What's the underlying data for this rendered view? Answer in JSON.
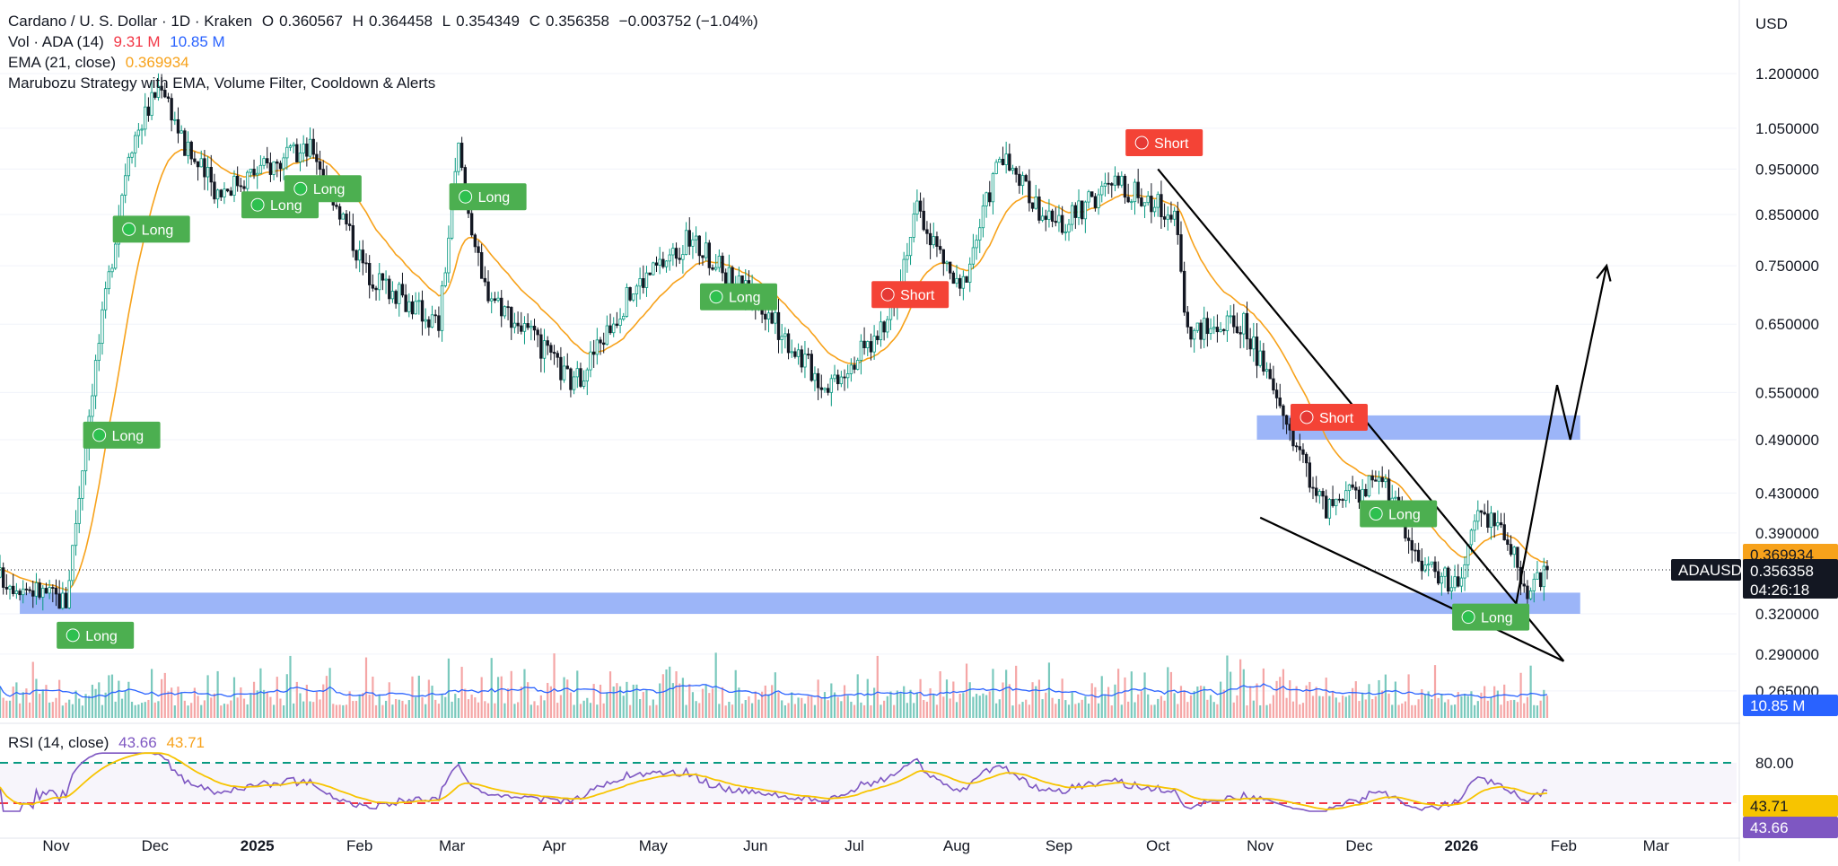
{
  "header": {
    "symbol_line": "Cardano / U. S. Dollar · 1D · Kraken",
    "o_label": "O",
    "o_value": "0.360567",
    "h_label": "H",
    "h_value": "0.364458",
    "l_label": "L",
    "l_value": "0.354349",
    "c_label": "C",
    "c_value": "0.356358",
    "change": "−0.003752 (−1.04%)",
    "vol_label": "Vol · ADA (14)",
    "vol_value_1": "9.31 M",
    "vol_value_2": "10.85 M",
    "ema_label": "EMA (21, close)",
    "ema_value": "0.369934",
    "strategy_label": "Marubozu Strategy with EMA, Volume Filter, Cooldown & Alerts",
    "rsi_label": "RSI (14, close)",
    "rsi_value_1": "43.66",
    "rsi_value_2": "43.71"
  },
  "price_scale": {
    "currency": "USD",
    "ticks": [
      "1.200000",
      "1.050000",
      "0.950000",
      "0.850000",
      "0.750000",
      "0.650000",
      "0.550000",
      "0.490000",
      "0.430000",
      "0.390000",
      "0.320000",
      "0.290000",
      "0.265000"
    ],
    "ema_tag": "0.369934",
    "symbol_tag": "ADAUSD",
    "last_price_tag": "0.356358",
    "countdown": "04:26:18",
    "volume_tag": "10.85 M",
    "rsi_ticks": [
      "80.00"
    ],
    "rsi_tag_1": "43.71",
    "rsi_tag_2": "43.66"
  },
  "time_axis": [
    "Nov",
    "Dec",
    "2025",
    "Feb",
    "Mar",
    "Apr",
    "May",
    "Jun",
    "Jul",
    "Aug",
    "Sep",
    "Oct",
    "Nov",
    "Dec",
    "2026",
    "Feb",
    "Mar"
  ],
  "signals": [
    {
      "label": "Long",
      "type": "long",
      "date": "2024-11-05"
    },
    {
      "label": "Long",
      "type": "long",
      "date": "2024-11-13"
    },
    {
      "label": "Long",
      "type": "long",
      "date": "2024-11-22"
    },
    {
      "label": "Long",
      "type": "long",
      "date": "2024-12-31"
    },
    {
      "label": "Long",
      "type": "long",
      "date": "2025-01-13"
    },
    {
      "label": "Long",
      "type": "long",
      "date": "2025-03-04"
    },
    {
      "label": "Long",
      "type": "long",
      "date": "2025-05-19"
    },
    {
      "label": "Short",
      "type": "short",
      "date": "2025-07-10"
    },
    {
      "label": "Short",
      "type": "short",
      "date": "2025-09-25"
    },
    {
      "label": "Short",
      "type": "short",
      "date": "2025-11-14"
    },
    {
      "label": "Long",
      "type": "long",
      "date": "2025-12-05"
    },
    {
      "label": "Long",
      "type": "long",
      "date": "2026-01-02"
    }
  ],
  "colors": {
    "up": "#089981",
    "down": "#131722",
    "ema": "#f7a21b",
    "volume_up": "#7ac9bd",
    "volume_down": "#f5a6a6",
    "volume_ma": "#2962ff",
    "rsi": "#7e57c2",
    "rsi_ma": "#f7c400",
    "rsi_upper": "#089981",
    "rsi_lower": "#f23645",
    "zone": "#7b9cf5",
    "long": "#4caf50",
    "short": "#f44336"
  },
  "chart_data": {
    "type": "candlestick",
    "symbol": "ADAUSD",
    "interval": "1D",
    "x_range": [
      "2024-10-15",
      "2026-03-05"
    ],
    "y_range": [
      0.25,
      1.25
    ],
    "y_scale": "log",
    "price_path": [
      [
        "2024-10-15",
        0.35
      ],
      [
        "2024-11-04",
        0.33
      ],
      [
        "2024-11-12",
        0.56
      ],
      [
        "2024-11-23",
        1.0
      ],
      [
        "2024-12-03",
        1.18
      ],
      [
        "2024-12-10",
        1.0
      ],
      [
        "2024-12-20",
        0.9
      ],
      [
        "2025-01-02",
        0.95
      ],
      [
        "2025-01-18",
        1.0
      ],
      [
        "2025-02-03",
        0.74
      ],
      [
        "2025-02-25",
        0.65
      ],
      [
        "2025-03-03",
        1.0
      ],
      [
        "2025-03-10",
        0.72
      ],
      [
        "2025-04-07",
        0.56
      ],
      [
        "2025-04-25",
        0.71
      ],
      [
        "2025-05-12",
        0.8
      ],
      [
        "2025-06-01",
        0.69
      ],
      [
        "2025-06-22",
        0.56
      ],
      [
        "2025-07-10",
        0.64
      ],
      [
        "2025-07-20",
        0.86
      ],
      [
        "2025-08-02",
        0.7
      ],
      [
        "2025-08-14",
        0.98
      ],
      [
        "2025-08-31",
        0.82
      ],
      [
        "2025-09-18",
        0.92
      ],
      [
        "2025-10-06",
        0.85
      ],
      [
        "2025-10-10",
        0.64
      ],
      [
        "2025-10-27",
        0.65
      ],
      [
        "2025-11-05",
        0.55
      ],
      [
        "2025-11-21",
        0.41
      ],
      [
        "2025-12-08",
        0.45
      ],
      [
        "2025-12-18",
        0.37
      ],
      [
        "2025-12-31",
        0.34
      ],
      [
        "2026-01-06",
        0.41
      ],
      [
        "2026-01-15",
        0.39
      ],
      [
        "2026-01-20",
        0.34
      ],
      [
        "2026-01-27",
        0.356
      ]
    ],
    "last_price": 0.356358,
    "ema_21_last": 0.369934,
    "zones": [
      [
        0.32,
        0.337
      ],
      [
        0.49,
        0.52
      ]
    ],
    "drawings": {
      "wedge_upper": [
        [
          "2025-10-01",
          0.95
        ],
        [
          "2026-02-01",
          0.285
        ]
      ],
      "wedge_lower": [
        [
          "2025-11-01",
          0.405
        ],
        [
          "2026-02-01",
          0.285
        ]
      ],
      "projection": [
        [
          "2026-01-17",
          0.32
        ],
        [
          "2026-01-30",
          0.56
        ],
        [
          "2026-02-03",
          0.49
        ],
        [
          "2026-02-14",
          0.75
        ]
      ]
    },
    "volume": {
      "name": "Vol · ADA (14)",
      "last": 9.31,
      "ma_last": 10.85,
      "unit": "M"
    },
    "rsi": {
      "length": 14,
      "last": 43.66,
      "ma_last": 43.71,
      "upper": 80,
      "lower": 30
    }
  }
}
